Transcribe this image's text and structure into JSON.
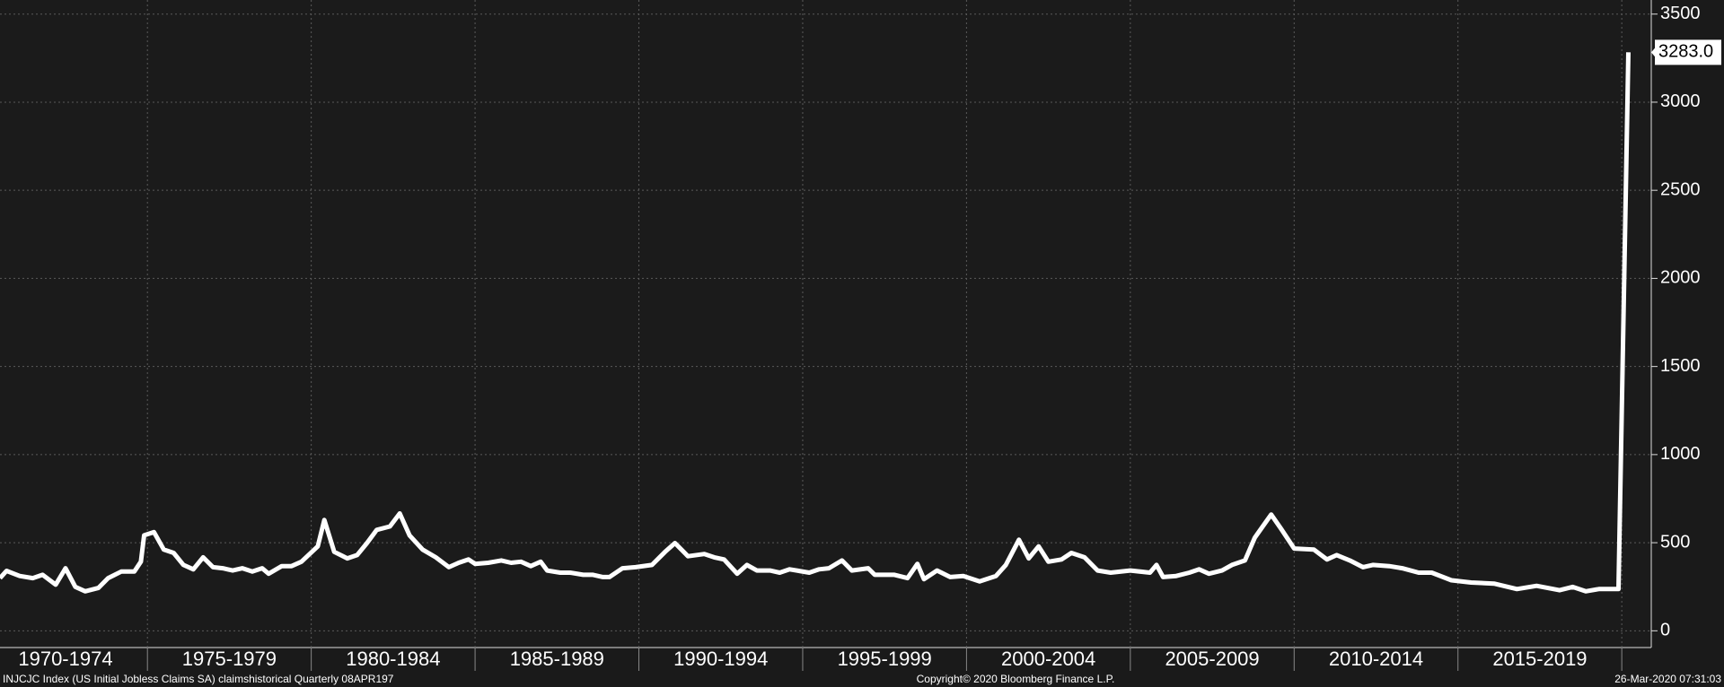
{
  "chart_data": {
    "type": "line",
    "color": "#ffffff",
    "grid": true,
    "x": [
      1970.5,
      1970.7,
      1971.1,
      1971.5,
      1971.8,
      1972.2,
      1972.5,
      1972.8,
      1973.1,
      1973.5,
      1973.8,
      1974.2,
      1974.6,
      1974.8,
      1974.9,
      1975.2,
      1975.5,
      1975.8,
      1976.1,
      1976.4,
      1976.7,
      1977.0,
      1977.3,
      1977.6,
      1977.9,
      1978.2,
      1978.5,
      1978.7,
      1979.1,
      1979.4,
      1979.7,
      1980.2,
      1980.4,
      1980.7,
      1981.1,
      1981.4,
      1981.7,
      1982.0,
      1982.4,
      1982.7,
      1983.0,
      1983.4,
      1983.8,
      1984.2,
      1984.5,
      1984.8,
      1985.0,
      1985.4,
      1985.8,
      1986.1,
      1986.4,
      1986.7,
      1987.0,
      1987.2,
      1987.6,
      1987.9,
      1988.3,
      1988.6,
      1988.9,
      1989.1,
      1989.5,
      1989.9,
      1990.4,
      1990.8,
      1991.1,
      1991.5,
      1992.0,
      1992.3,
      1992.6,
      1993.0,
      1993.3,
      1993.6,
      1994.0,
      1994.3,
      1994.6,
      1995.2,
      1995.5,
      1995.8,
      1996.2,
      1996.5,
      1997.0,
      1997.2,
      1997.8,
      1998.2,
      1998.5,
      1998.7,
      1999.1,
      1999.5,
      1999.9,
      2000.4,
      2000.9,
      2001.2,
      2001.6,
      2001.9,
      2002.2,
      2002.5,
      2002.9,
      2003.2,
      2003.6,
      2004.0,
      2004.4,
      2005.0,
      2005.6,
      2005.8,
      2006.0,
      2006.4,
      2006.8,
      2007.1,
      2007.4,
      2007.8,
      2008.1,
      2008.5,
      2008.8,
      2009.3,
      2009.6,
      2010.0,
      2010.6,
      2011.0,
      2011.3,
      2011.7,
      2012.1,
      2012.4,
      2012.9,
      2013.3,
      2013.8,
      2014.2,
      2014.8,
      2015.4,
      2016.1,
      2016.8,
      2017.4,
      2018.1,
      2018.5,
      2018.9,
      2019.3,
      2019.9,
      2020.2
    ],
    "values": [
      299,
      340,
      311,
      299,
      318,
      262,
      355,
      249,
      224,
      243,
      299,
      336,
      336,
      392,
      542,
      560,
      461,
      442,
      374,
      349,
      417,
      361,
      355,
      342,
      355,
      336,
      355,
      324,
      367,
      367,
      392,
      479,
      629,
      448,
      411,
      430,
      498,
      573,
      592,
      666,
      542,
      461,
      417,
      361,
      386,
      405,
      380,
      386,
      399,
      386,
      392,
      367,
      392,
      342,
      330,
      330,
      318,
      318,
      305,
      305,
      355,
      361,
      374,
      448,
      498,
      423,
      436,
      417,
      405,
      324,
      374,
      342,
      342,
      330,
      349,
      330,
      349,
      355,
      399,
      342,
      355,
      318,
      318,
      299,
      380,
      293,
      342,
      305,
      311,
      280,
      311,
      374,
      517,
      411,
      479,
      392,
      405,
      442,
      417,
      342,
      330,
      342,
      330,
      374,
      305,
      311,
      330,
      349,
      324,
      342,
      374,
      399,
      529,
      660,
      579,
      467,
      461,
      405,
      430,
      399,
      361,
      374,
      367,
      355,
      330,
      330,
      287,
      274,
      268,
      237,
      255,
      230,
      249,
      224,
      237,
      237,
      3283
    ],
    "last_value_label": "3283.0",
    "xlim": [
      1970.5,
      2020.9
    ],
    "x_gridlines": [
      1975,
      1980,
      1985,
      1990,
      1995,
      2000,
      2005,
      2010,
      2015,
      2020
    ],
    "xticks": [
      {
        "value": 1972.5,
        "label": "1970-1974"
      },
      {
        "value": 1977.5,
        "label": "1975-1979"
      },
      {
        "value": 1982.5,
        "label": "1980-1984"
      },
      {
        "value": 1987.5,
        "label": "1985-1989"
      },
      {
        "value": 1992.5,
        "label": "1990-1994"
      },
      {
        "value": 1997.5,
        "label": "1995-1999"
      },
      {
        "value": 2002.5,
        "label": "2000-2004"
      },
      {
        "value": 2007.5,
        "label": "2005-2009"
      },
      {
        "value": 2012.5,
        "label": "2010-2014"
      },
      {
        "value": 2017.5,
        "label": "2015-2019"
      }
    ],
    "ylim": [
      -95,
      3580
    ],
    "yticks": [
      0,
      500,
      1000,
      1500,
      2000,
      2500,
      3000,
      3500
    ]
  },
  "footer": {
    "left": "INJCJC Index (US Initial Jobless Claims SA) claimshistorical  Quarterly 08APR197",
    "center": "Copyright© 2020 Bloomberg Finance L.P.",
    "right": "26-Mar-2020 07:31:03"
  }
}
